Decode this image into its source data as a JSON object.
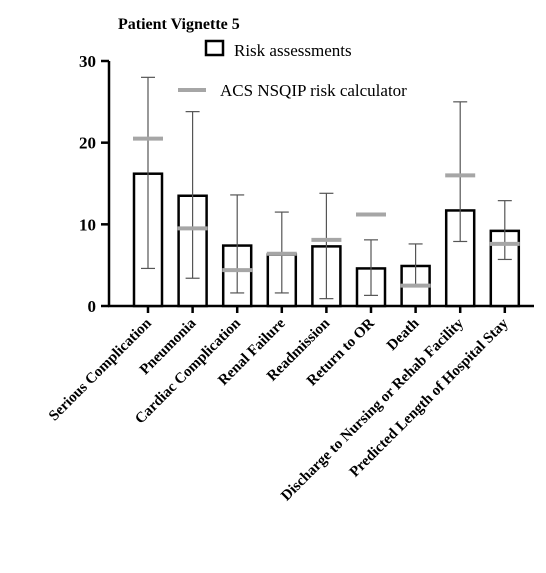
{
  "chart_data": {
    "type": "bar",
    "title": "Patient Vignette 5",
    "xlabel": "",
    "ylabel": "",
    "ylim": [
      0,
      30
    ],
    "yticks": [
      0,
      10,
      20,
      30
    ],
    "legend_position": "top",
    "legend": {
      "bars": "Risk assessments",
      "marker": "ACS NSQIP risk calculator"
    },
    "categories": [
      "Serious Complication",
      "Pneumonia",
      "Cardiac Complication",
      "Renal Failure",
      "Readmission",
      "Return to OR",
      "Death",
      "Discharge to Nursing or Rehab Facility",
      "Predicted Length of Hospital Stay"
    ],
    "series": [
      {
        "name": "Risk assessments",
        "values": [
          16.2,
          13.5,
          7.4,
          6.3,
          7.3,
          4.6,
          4.9,
          11.7,
          9.2
        ],
        "error_low": [
          4.6,
          3.4,
          1.6,
          1.6,
          0.9,
          1.3,
          2.5,
          7.9,
          5.7
        ],
        "error_high": [
          28.0,
          23.8,
          13.6,
          11.5,
          13.8,
          8.1,
          7.6,
          25.0,
          12.9
        ]
      },
      {
        "name": "ACS NSQIP risk calculator",
        "values": [
          20.5,
          9.5,
          4.4,
          6.4,
          8.1,
          11.2,
          2.5,
          16.0,
          7.6
        ]
      }
    ],
    "colors": {
      "bar_fill": "#ffffff",
      "bar_stroke": "#000000",
      "calculator": "#a6a6a6",
      "error": "#555555"
    }
  }
}
